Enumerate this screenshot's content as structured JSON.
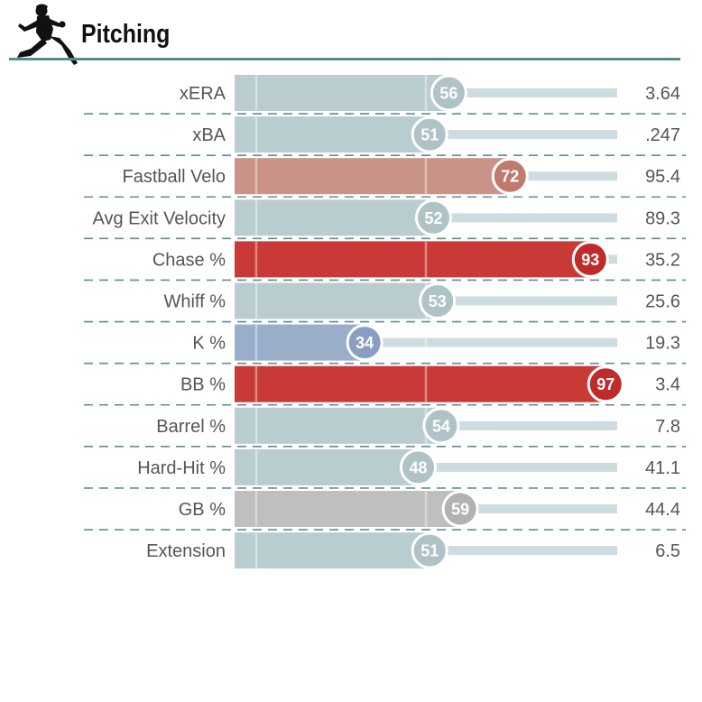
{
  "header": {
    "title": "Pitching",
    "icon": "pitcher-silhouette-icon"
  },
  "colors": {
    "neutral_bar": "#b9cdd0",
    "neutral_circle": "#afc3c6",
    "track": "#cddcde",
    "rule": "#5a8a8e",
    "divider": "#5f8e92",
    "fastball": "#c99388",
    "fastball_circle": "#c07a6e",
    "hot": "#c93a37",
    "hot_circle": "#c02a28",
    "cold": "#9aaec9",
    "cold_circle": "#8a9fbf",
    "gb": "#bfc0bd",
    "gb_circle": "#b2b3b0"
  },
  "chart_data": {
    "type": "bar",
    "orientation": "horizontal",
    "xlim": [
      0,
      100
    ],
    "reference_lines": [
      0,
      50
    ],
    "rows": [
      {
        "label": "xERA",
        "percentile": 56,
        "value": "3.64",
        "color_key": "neutral"
      },
      {
        "label": "xBA",
        "percentile": 51,
        "value": ".247",
        "color_key": "neutral"
      },
      {
        "label": "Fastball Velo",
        "percentile": 72,
        "value": "95.4",
        "color_key": "fastball"
      },
      {
        "label": "Avg Exit Velocity",
        "percentile": 52,
        "value": "89.3",
        "color_key": "neutral"
      },
      {
        "label": "Chase %",
        "percentile": 93,
        "value": "35.2",
        "color_key": "hot"
      },
      {
        "label": "Whiff %",
        "percentile": 53,
        "value": "25.6",
        "color_key": "neutral"
      },
      {
        "label": "K %",
        "percentile": 34,
        "value": "19.3",
        "color_key": "cold"
      },
      {
        "label": "BB %",
        "percentile": 97,
        "value": "3.4",
        "color_key": "hot"
      },
      {
        "label": "Barrel %",
        "percentile": 54,
        "value": "7.8",
        "color_key": "neutral"
      },
      {
        "label": "Hard-Hit %",
        "percentile": 48,
        "value": "41.1",
        "color_key": "neutral"
      },
      {
        "label": "GB %",
        "percentile": 59,
        "value": "44.4",
        "color_key": "gb"
      },
      {
        "label": "Extension",
        "percentile": 51,
        "value": "6.5",
        "color_key": "neutral"
      }
    ]
  }
}
